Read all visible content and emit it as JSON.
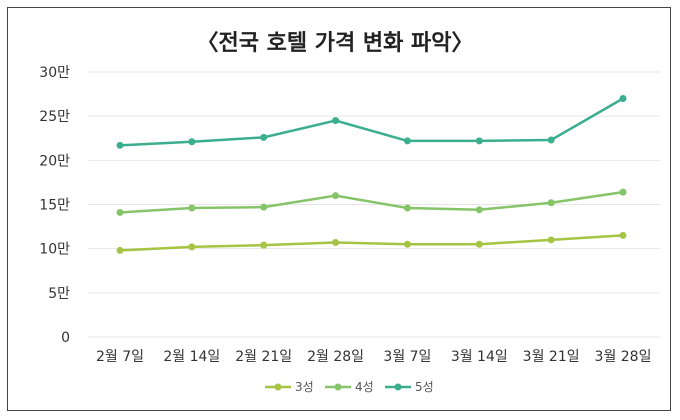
{
  "chart_data": {
    "type": "line",
    "title": "〈전국 호텔 가격 변화 파악〉",
    "categories": [
      "2월 7일",
      "2월 14일",
      "2월 21일",
      "2월 28일",
      "3월 7일",
      "3월 14일",
      "3월 21일",
      "3월 28일"
    ],
    "y_tick_labels": [
      "0",
      "5만",
      "10만",
      "15만",
      "20만",
      "25만",
      "30만"
    ],
    "ylim": [
      0,
      300000
    ],
    "grid": true,
    "legend_position": "bottom",
    "series": [
      {
        "name": "3성",
        "color": "#a6c443",
        "values": [
          98000,
          102000,
          104000,
          107000,
          105000,
          105000,
          110000,
          115000
        ]
      },
      {
        "name": "4성",
        "color": "#86c46a",
        "values": [
          141000,
          146000,
          147000,
          160000,
          146000,
          144000,
          152000,
          164000
        ]
      },
      {
        "name": "5성",
        "color": "#3aae8e",
        "values": [
          217000,
          221000,
          226000,
          245000,
          222000,
          222000,
          223000,
          270000
        ]
      }
    ]
  }
}
